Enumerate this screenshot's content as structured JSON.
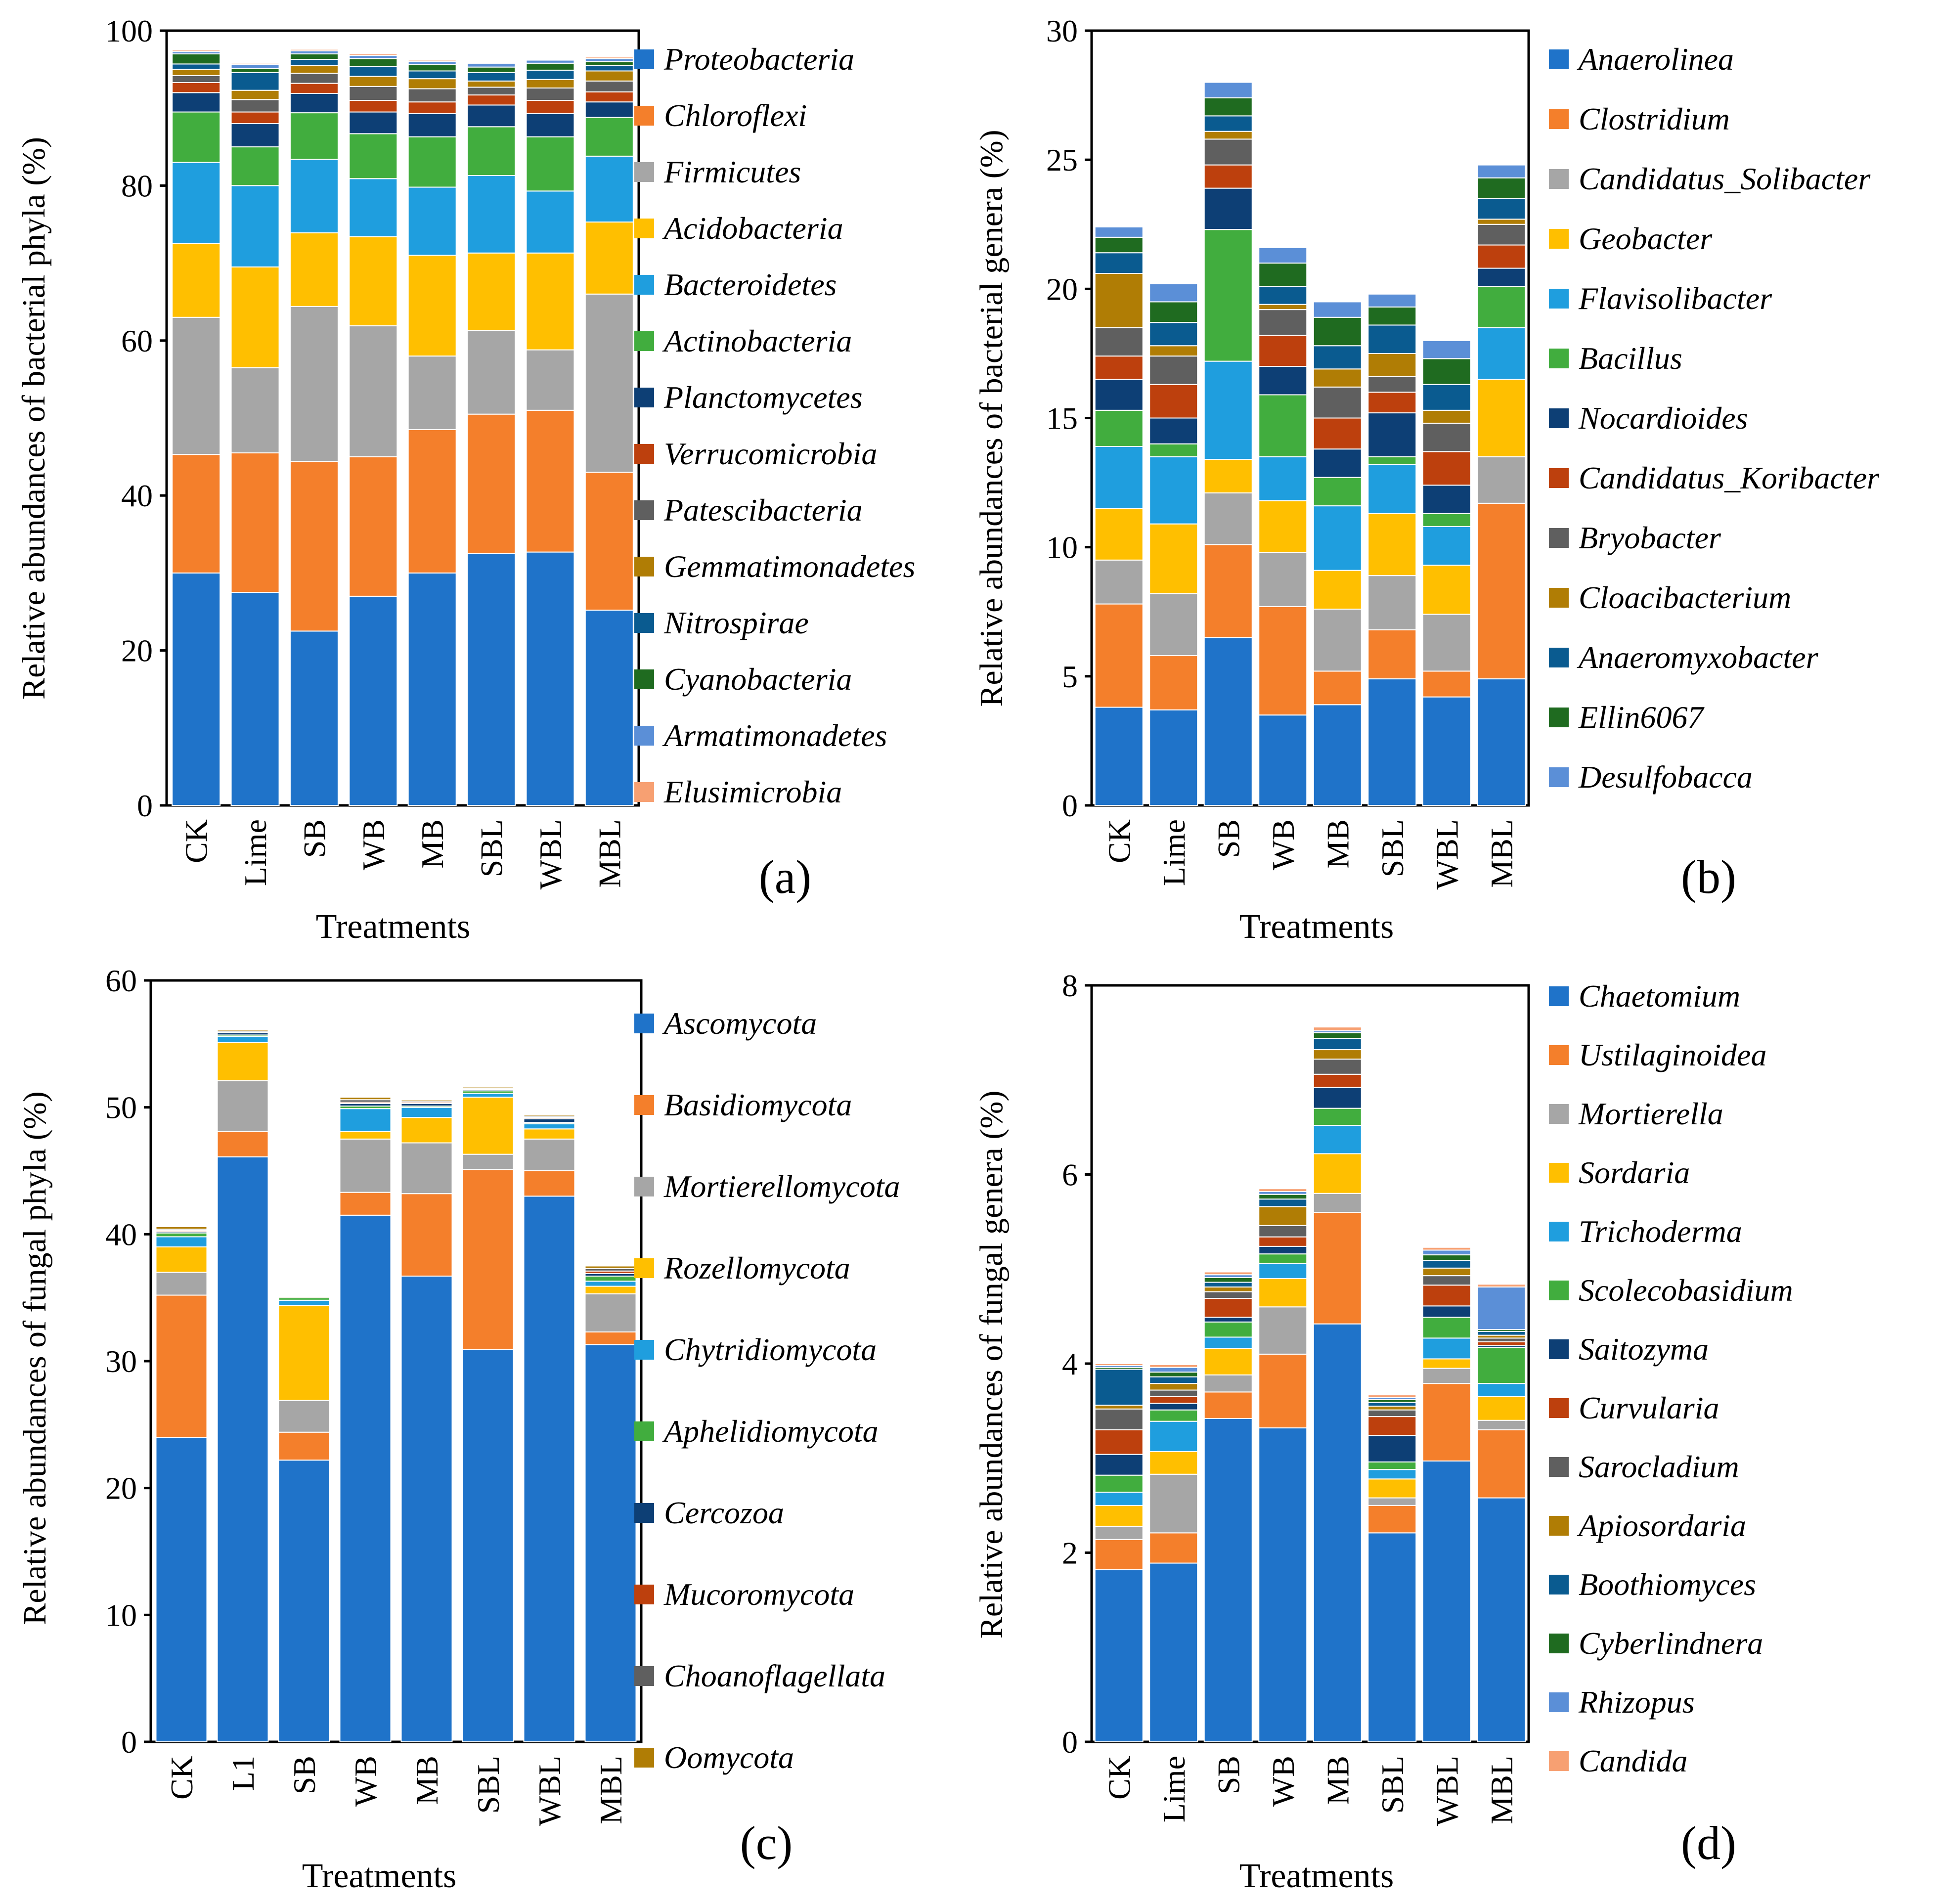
{
  "figure": {
    "panels": [
      "(a)",
      "(b)",
      "(c)",
      "(d)"
    ]
  },
  "colors": [
    "#1f73c9",
    "#f47f2b",
    "#a6a6a6",
    "#ffbf00",
    "#1f9ede",
    "#41ad3e",
    "#0d3f75",
    "#bd400d",
    "#5f5f5f",
    "#b07d05",
    "#0a5b90",
    "#1f6b20",
    "#5b8fd7",
    "#f7a072"
  ],
  "chart_data": [
    {
      "type": "bar",
      "stacked": true,
      "panel_label": "(a)",
      "title": "",
      "xlabel": "Treatments",
      "ylabel": "Relative abundances of bacterial phyla (%)",
      "ylim": [
        0,
        100
      ],
      "yticks": [
        0,
        20,
        40,
        60,
        80,
        100
      ],
      "categories": [
        "CK",
        "Lime",
        "SB",
        "WB",
        "MB",
        "SBL",
        "WBL",
        "MBL"
      ],
      "series": [
        {
          "name": "Proteobacteria",
          "values": [
            30.0,
            27.5,
            22.5,
            27.0,
            30.0,
            32.5,
            32.7,
            25.2
          ]
        },
        {
          "name": "Chloroflexi",
          "values": [
            15.3,
            18.0,
            21.9,
            18.0,
            18.5,
            18.0,
            18.3,
            17.8
          ]
        },
        {
          "name": "Firmicutes",
          "values": [
            17.7,
            11.0,
            20.0,
            16.9,
            9.5,
            10.8,
            7.8,
            23.0
          ]
        },
        {
          "name": "Acidobacteria",
          "values": [
            9.5,
            13.0,
            9.5,
            11.5,
            13.0,
            10.0,
            12.5,
            9.3
          ]
        },
        {
          "name": "Bacteroidetes",
          "values": [
            10.5,
            10.5,
            9.5,
            7.5,
            8.8,
            10.0,
            8.0,
            8.5
          ]
        },
        {
          "name": "Actinobacteria",
          "values": [
            6.5,
            5.0,
            6.0,
            5.8,
            6.5,
            6.3,
            7.0,
            5.0
          ]
        },
        {
          "name": "Planctomycetes",
          "values": [
            2.5,
            3.0,
            2.5,
            2.8,
            3.0,
            2.8,
            3.0,
            2.0
          ]
        },
        {
          "name": "Verrucomicrobia",
          "values": [
            1.3,
            1.5,
            1.3,
            1.5,
            1.5,
            1.3,
            1.7,
            1.3
          ]
        },
        {
          "name": "Patescibacteria",
          "values": [
            0.9,
            1.6,
            1.3,
            1.8,
            1.7,
            1.0,
            1.6,
            1.4
          ]
        },
        {
          "name": "Gemmatimonadetes",
          "values": [
            0.8,
            1.2,
            1.0,
            1.3,
            1.3,
            0.8,
            1.1,
            1.3
          ]
        },
        {
          "name": "Nitrospirae",
          "values": [
            0.7,
            2.3,
            0.8,
            1.3,
            1.0,
            1.1,
            1.2,
            0.7
          ]
        },
        {
          "name": "Cyanobacteria",
          "values": [
            1.3,
            0.5,
            0.7,
            1.0,
            0.8,
            0.7,
            0.9,
            0.5
          ]
        },
        {
          "name": "Armatimonadetes",
          "values": [
            0.3,
            0.5,
            0.4,
            0.4,
            0.4,
            0.5,
            0.4,
            0.4
          ]
        },
        {
          "name": "Elusimicrobia",
          "values": [
            0.2,
            0.2,
            0.2,
            0.2,
            0.2,
            0.1,
            0.1,
            0.2
          ]
        }
      ]
    },
    {
      "type": "bar",
      "stacked": true,
      "panel_label": "(b)",
      "title": "",
      "xlabel": "Treatments",
      "ylabel": "Relative abundances of bacterial genera (%)",
      "ylim": [
        0,
        30
      ],
      "yticks": [
        0,
        5,
        10,
        15,
        20,
        25,
        30
      ],
      "categories": [
        "CK",
        "Lime",
        "SB",
        "WB",
        "MB",
        "SBL",
        "WBL",
        "MBL"
      ],
      "series": [
        {
          "name": "Anaerolinea",
          "values": [
            3.8,
            3.7,
            6.5,
            3.5,
            3.9,
            4.9,
            4.2,
            4.9
          ]
        },
        {
          "name": "Clostridium",
          "values": [
            4.0,
            2.1,
            3.6,
            4.2,
            1.3,
            1.9,
            1.0,
            6.8
          ]
        },
        {
          "name": "Candidatus_Solibacter",
          "values": [
            1.7,
            2.4,
            2.0,
            2.1,
            2.4,
            2.1,
            2.2,
            1.8
          ]
        },
        {
          "name": "Geobacter",
          "values": [
            2.0,
            2.7,
            1.3,
            2.0,
            1.5,
            2.4,
            1.9,
            3.0
          ]
        },
        {
          "name": "Flavisolibacter",
          "values": [
            2.4,
            2.6,
            3.8,
            1.7,
            2.5,
            1.9,
            1.5,
            2.0
          ]
        },
        {
          "name": "Bacillus",
          "values": [
            1.4,
            0.5,
            5.1,
            2.4,
            1.1,
            0.3,
            0.5,
            1.6
          ]
        },
        {
          "name": "Nocardioides",
          "values": [
            1.2,
            1.0,
            1.6,
            1.1,
            1.1,
            1.7,
            1.1,
            0.7
          ]
        },
        {
          "name": "Candidatus_Koribacter",
          "values": [
            0.9,
            1.3,
            0.9,
            1.2,
            1.2,
            0.8,
            1.3,
            0.9
          ]
        },
        {
          "name": "Bryobacter",
          "values": [
            1.1,
            1.1,
            1.0,
            1.0,
            1.2,
            0.6,
            1.1,
            0.8
          ]
        },
        {
          "name": "Cloacibacterium",
          "values": [
            2.1,
            0.4,
            0.3,
            0.2,
            0.7,
            0.9,
            0.5,
            0.2
          ]
        },
        {
          "name": "Anaeromyxobacter",
          "values": [
            0.8,
            0.9,
            0.6,
            0.7,
            0.9,
            1.1,
            1.0,
            0.8
          ]
        },
        {
          "name": "Ellin6067",
          "values": [
            0.6,
            0.8,
            0.7,
            0.9,
            1.1,
            0.7,
            1.0,
            0.8
          ]
        },
        {
          "name": "Desulfobacca",
          "values": [
            0.4,
            0.7,
            0.6,
            0.6,
            0.6,
            0.5,
            0.7,
            0.5
          ]
        }
      ]
    },
    {
      "type": "bar",
      "stacked": true,
      "panel_label": "(c)",
      "title": "",
      "xlabel": "Treatments",
      "ylabel": "Relative abundances of fungal phyla (%)",
      "ylim": [
        0,
        60
      ],
      "yticks": [
        0,
        10,
        20,
        30,
        40,
        50,
        60
      ],
      "categories": [
        "CK",
        "L1",
        "SB",
        "WB",
        "MB",
        "SBL",
        "WBL",
        "MBL"
      ],
      "series": [
        {
          "name": "Ascomycota",
          "values": [
            24.0,
            46.1,
            22.2,
            41.5,
            36.7,
            30.9,
            43.0,
            31.3
          ]
        },
        {
          "name": "Basidiomycota",
          "values": [
            11.2,
            2.0,
            2.2,
            1.8,
            6.5,
            14.2,
            2.0,
            1.0
          ]
        },
        {
          "name": "Mortierellomycota",
          "values": [
            1.8,
            4.0,
            2.5,
            4.2,
            4.0,
            1.2,
            2.5,
            3.0
          ]
        },
        {
          "name": "Rozellomycota",
          "values": [
            2.0,
            3.0,
            7.5,
            0.6,
            2.0,
            4.5,
            0.8,
            0.6
          ]
        },
        {
          "name": "Chytridiomycota",
          "values": [
            0.8,
            0.5,
            0.4,
            1.8,
            0.8,
            0.3,
            0.4,
            0.4
          ]
        },
        {
          "name": "Aphelidiomycota",
          "values": [
            0.3,
            0.1,
            0.2,
            0.2,
            0.1,
            0.2,
            0.1,
            0.4
          ]
        },
        {
          "name": "Cercozoa",
          "values": [
            0.1,
            0.2,
            0.0,
            0.2,
            0.2,
            0.1,
            0.3,
            0.2
          ]
        },
        {
          "name": "Mucoromycota",
          "values": [
            0.1,
            0.0,
            0.0,
            0.1,
            0.1,
            0.0,
            0.1,
            0.2
          ]
        },
        {
          "name": "Choanoflagellata",
          "values": [
            0.1,
            0.1,
            0.0,
            0.2,
            0.1,
            0.1,
            0.1,
            0.2
          ]
        },
        {
          "name": "Oomycota",
          "values": [
            0.2,
            0.1,
            0.1,
            0.2,
            0.1,
            0.1,
            0.1,
            0.2
          ]
        }
      ]
    },
    {
      "type": "bar",
      "stacked": true,
      "panel_label": "(d)",
      "title": "",
      "xlabel": "Treatments",
      "ylabel": "Relative abundances of  fungal genera (%)",
      "ylim": [
        0,
        8
      ],
      "yticks": [
        0,
        2,
        4,
        6,
        8
      ],
      "categories": [
        "CK",
        "Lime",
        "SB",
        "WB",
        "MB",
        "SBL",
        "WBL",
        "MBL"
      ],
      "series": [
        {
          "name": "Chaetomium",
          "values": [
            1.82,
            1.89,
            3.42,
            3.32,
            4.42,
            2.21,
            2.97,
            2.58
          ]
        },
        {
          "name": "Ustilaginoidea",
          "values": [
            0.32,
            0.32,
            0.28,
            0.78,
            1.18,
            0.29,
            0.82,
            0.72
          ]
        },
        {
          "name": "Mortierella",
          "values": [
            0.14,
            0.62,
            0.18,
            0.5,
            0.2,
            0.08,
            0.16,
            0.1
          ]
        },
        {
          "name": "Sordaria",
          "values": [
            0.22,
            0.24,
            0.28,
            0.3,
            0.42,
            0.2,
            0.1,
            0.25
          ]
        },
        {
          "name": "Trichoderma",
          "values": [
            0.14,
            0.32,
            0.12,
            0.16,
            0.3,
            0.1,
            0.22,
            0.14
          ]
        },
        {
          "name": "Scolecobasidium",
          "values": [
            0.18,
            0.12,
            0.16,
            0.1,
            0.18,
            0.08,
            0.22,
            0.38
          ]
        },
        {
          "name": "Saitozyma",
          "values": [
            0.22,
            0.07,
            0.05,
            0.08,
            0.22,
            0.28,
            0.12,
            0.02
          ]
        },
        {
          "name": "Curvularia",
          "values": [
            0.26,
            0.07,
            0.2,
            0.1,
            0.14,
            0.2,
            0.22,
            0.04
          ]
        },
        {
          "name": "Sarocladium",
          "values": [
            0.22,
            0.07,
            0.07,
            0.12,
            0.16,
            0.07,
            0.1,
            0.04
          ]
        },
        {
          "name": "Apiosordaria",
          "values": [
            0.04,
            0.07,
            0.05,
            0.2,
            0.1,
            0.04,
            0.08,
            0.03
          ]
        },
        {
          "name": "Boothiomyces",
          "values": [
            0.38,
            0.07,
            0.05,
            0.08,
            0.12,
            0.04,
            0.08,
            0.04
          ]
        },
        {
          "name": "Cyberlindnera",
          "values": [
            0.02,
            0.05,
            0.05,
            0.05,
            0.06,
            0.03,
            0.06,
            0.02
          ]
        },
        {
          "name": "Rhizopus",
          "values": [
            0.02,
            0.05,
            0.03,
            0.03,
            0.02,
            0.02,
            0.05,
            0.45
          ]
        },
        {
          "name": "Candida",
          "values": [
            0.02,
            0.03,
            0.03,
            0.03,
            0.04,
            0.03,
            0.03,
            0.03
          ]
        }
      ]
    }
  ]
}
